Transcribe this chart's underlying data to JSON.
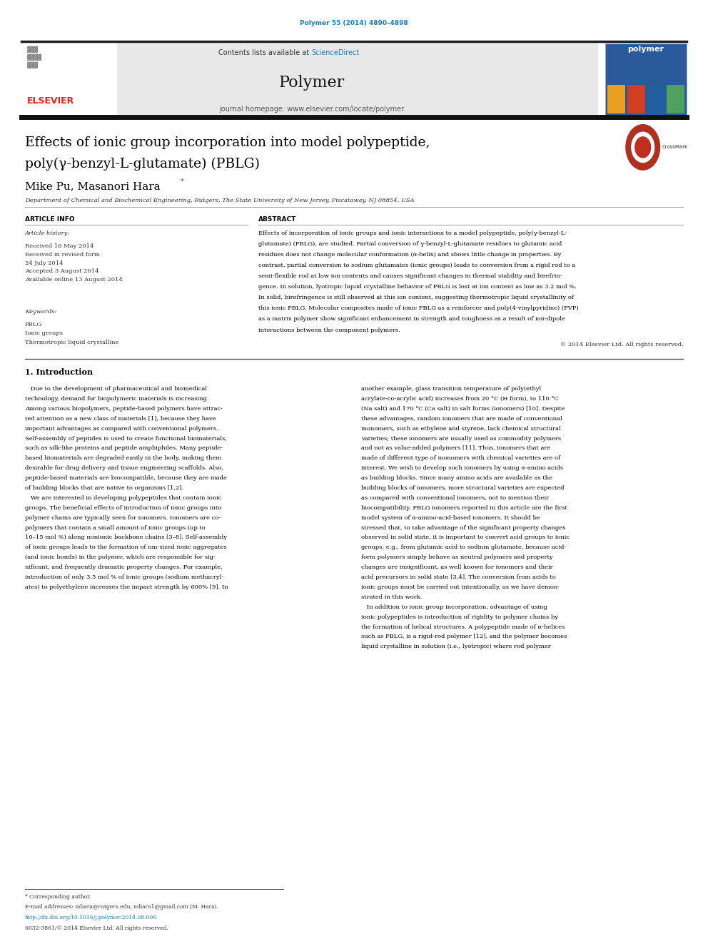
{
  "page_width": 9.92,
  "page_height": 13.23,
  "background_color": "#ffffff",
  "top_doi_text": "Polymer 55 (2014) 4890–4898",
  "top_doi_color": "#1a7bbf",
  "header_bg_color": "#e8e8e8",
  "header_journal_name": "Polymer",
  "header_contents_text": "Contents lists available at ",
  "header_sciencedirect_text": "ScienceDirect",
  "header_sciencedirect_color": "#1a7bbf",
  "header_homepage_text": "journal homepage: www.elsevier.com/locate/polymer",
  "title_line1": "Effects of ionic group incorporation into model polypeptide,",
  "title_line2": "poly(γ-benzyl-L-glutamate) (PBLG)",
  "authors": "Mike Pu, Masanori Hara",
  "affiliation": "Department of Chemical and Biochemical Engineering, Rutgers, The State University of New Jersey, Piscataway, NJ 08854, USA",
  "section_article_info": "ARTICLE INFO",
  "section_abstract": "ABSTRACT",
  "article_history_label": "Article history:",
  "article_history": "Received 16 May 2014\nReceived in revised form\n24 July 2014\nAccepted 3 August 2014\nAvailable online 13 August 2014",
  "keywords_label": "Keywords:",
  "keywords": "PBLG\nIonic groups\nThermotropic liquid crystalline",
  "copyright_text": "© 2014 Elsevier Ltd. All rights reserved.",
  "section1_title": "1. Introduction",
  "footer_text1": "* Corresponding author.",
  "footer_text2": "E-mail addresses: mhara@rutgers.edu, mhara1@gmail.com (M. Hara).",
  "footer_link": "http://dx.doi.org/10.1016/j.polymer.2014.08.006",
  "footer_issn": "0032-3861/© 2014 Elsevier Ltd. All rights reserved.",
  "elsevier_color": "#e8241a",
  "link_blue": "#1a7bbf",
  "abstract_lines": [
    "Effects of incorporation of ionic groups and ionic interactions to a model polypeptide, poly(γ-benzyl-L-",
    "glutamate) (PBLG), are studied. Partial conversion of γ-benzyl-L-glutamate residues to glutamic acid",
    "residues does not change molecular conformation (α-helix) and shows little change in properties. By",
    "contrast, partial conversion to sodium glutamates (ionic groups) leads to conversion from a rigid rod to a",
    "semi-flexible rod at low ion contents and causes significant changes in thermal stability and birefrin-",
    "gence. In solution, lyotropic liquid crystalline behavior of PBLG is lost at ion content as low as 3.2 mol %.",
    "In solid, birefringence is still observed at this ion content, suggesting thermotropic liquid crystallinity of",
    "this ionic PBLG. Molecular composites made of ionic PBLG as a reinforcer and poly(4-vinylpyridine) (PVP)",
    "as a matrix polymer show significant enhancement in strength and toughness as a result of ion-dipole",
    "interactions between the component polymers."
  ],
  "intro_col1_lines": [
    "   Due to the development of pharmaceutical and biomedical",
    "technology, demand for biopolymeric materials is increasing.",
    "Among various biopolymers, peptide-based polymers have attrac-",
    "ted attention as a new class of materials [1], because they have",
    "important advantages as compared with conventional polymers.",
    "Self-assembly of peptides is used to create functional biomaterials,",
    "such as silk-like proteins and peptide amphiphiles. Many peptide-",
    "based biomaterials are degraded easily in the body, making them",
    "desirable for drug delivery and tissue engineering scaffolds. Also,",
    "peptide-based materials are biocompatible, because they are made",
    "of building blocks that are native to organisms [1,2].",
    "   We are interested in developing polypeptides that contain ionic",
    "groups. The beneficial effects of introduction of ionic groups into",
    "polymer chains are typically seen for ionomers. Ionomers are co-",
    "polymers that contain a small amount of ionic groups (up to",
    "10–15 mol %) along nonionic backbone chains [3–8]. Self-assembly",
    "of ionic groups leads to the formation of nm-sized ionic aggregates",
    "(and ionic bonds) in the polymer, which are responsible for sig-",
    "nificant, and frequently dramatic property changes. For example,",
    "introduction of only 3.5 mol % of ionic groups (sodium methacryl-",
    "ates) to polyethylene increases the impact strength by 600% [9]. In"
  ],
  "intro_col2_lines": [
    "another example, glass transition temperature of poly(ethyl",
    "acrylate-co-acrylic acid) increases from 20 °C (H form), to 110 °C",
    "(Na salt) and 170 °C (Ca salt) in salt forms (ionomers) [10]. Despite",
    "these advantages, random ionomers that are made of conventional",
    "monomers, such as ethylene and styrene, lack chemical structural",
    "varieties; these ionomers are usually used as commodity polymers",
    "and not as value-added polymers [11]. Thus, ionomers that are",
    "made of different type of monomers with chemical varieties are of",
    "interest. We wish to develop such ionomers by using α-amino acids",
    "as building blocks. Since many amino acids are available as the",
    "building blocks of ionomers, more structural varieties are expected",
    "as compared with conventional ionomers, not to mention their",
    "biocompatibility. PBLG ionomers reported in this article are the first",
    "model system of α-amino-acid-based ionomers. It should be",
    "stressed that, to take advantage of the significant property changes",
    "observed in solid state, it is important to convert acid groups to ionic",
    "groups; e.g., from glutamic acid to sodium glutamate, because acid-",
    "form polymers simply behave as neutral polymers and property",
    "changes are insignificant, as well known for ionomers and their",
    "acid precursors in solid state [3,4]. The conversion from acids to",
    "ionic groups must be carried out intentionally, as we have demon-",
    "strated in this work.",
    "   In addition to ionic group incorporation, advantage of using",
    "ionic polypeptides is introduction of rigidity to polymer chains by",
    "the formation of helical structures. A polypeptide made of α-helices",
    "such as PBLG, is a rigid-rod polymer [12], and the polymer becomes",
    "liquid crystalline in solution (i.e., lyotropic) where rod polymer"
  ]
}
